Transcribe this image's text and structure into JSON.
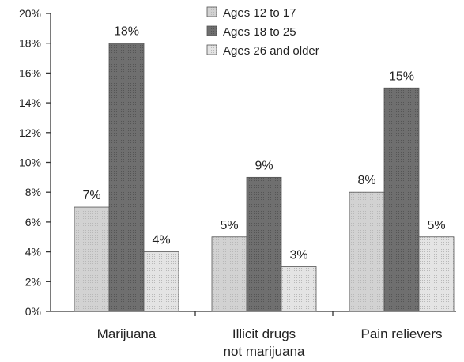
{
  "chart_data": {
    "type": "bar",
    "categories": [
      "Marijuana",
      "Illicit drugs\nnot marijuana",
      "Pain relievers"
    ],
    "series": [
      {
        "name": "Ages 12 to 17",
        "values": [
          7,
          5,
          8
        ],
        "labels": [
          "7%",
          "5%",
          "8%"
        ],
        "color": "#d2d2d2"
      },
      {
        "name": "Ages 18 to 25",
        "values": [
          18,
          9,
          15
        ],
        "labels": [
          "18%",
          "9%",
          "15%"
        ],
        "color": "#6f6f6f"
      },
      {
        "name": "Ages 26 and older",
        "values": [
          4,
          3,
          5
        ],
        "labels": [
          "4%",
          "3%",
          "5%"
        ],
        "color": "#e4e4e4"
      }
    ],
    "yticks": [
      "0%",
      "2%",
      "4%",
      "6%",
      "8%",
      "10%",
      "12%",
      "14%",
      "16%",
      "18%",
      "20%"
    ],
    "ylim": [
      0,
      20
    ],
    "title": "",
    "xlabel": "",
    "ylabel": "",
    "legend_position": "top-center",
    "grid": false
  }
}
